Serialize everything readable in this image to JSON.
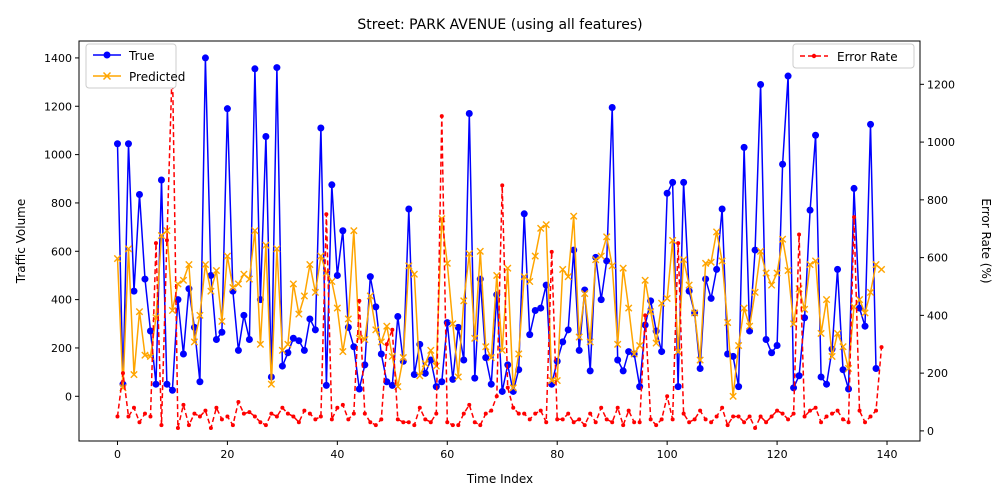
{
  "chart_data": {
    "type": "line",
    "title": "Street: PARK AVENUE (using all features)",
    "xlabel": "Time Index",
    "ylabel": "Traffic Volume",
    "y2label": "Error Rate (%)",
    "xlim": [
      -7,
      146
    ],
    "ylim": [
      -185,
      1470
    ],
    "y2lim": [
      -35,
      1350
    ],
    "x_ticks": [
      "0",
      "20",
      "40",
      "60",
      "80",
      "100",
      "120",
      "140"
    ],
    "y_ticks": [
      "0",
      "200",
      "400",
      "600",
      "800",
      "1000",
      "1200",
      "1400"
    ],
    "y2_ticks": [
      "0",
      "200",
      "400",
      "600",
      "800",
      "1000",
      "1200"
    ],
    "x_tick_values": [
      0,
      20,
      40,
      60,
      80,
      100,
      120,
      140
    ],
    "y_tick_values": [
      0,
      200,
      400,
      600,
      800,
      1000,
      1200,
      1400
    ],
    "y2_tick_values": [
      0,
      200,
      400,
      600,
      800,
      1000,
      1200
    ],
    "grid": false,
    "legend_left": {
      "placement": "top-left"
    },
    "legend_right": {
      "placement": "top-right"
    },
    "series": [
      {
        "name": "True",
        "color": "#0000ff",
        "marker": "circle",
        "axis": "left",
        "values": [
          1045,
          50,
          1045,
          435,
          835,
          485,
          270,
          50,
          895,
          50,
          25,
          400,
          175,
          445,
          285,
          60,
          1400,
          500,
          235,
          265,
          1190,
          435,
          190,
          335,
          235,
          1355,
          400,
          1075,
          80,
          1360,
          125,
          180,
          240,
          230,
          190,
          320,
          275,
          1110,
          45,
          875,
          500,
          685,
          285,
          205,
          30,
          130,
          495,
          370,
          175,
          60,
          45,
          330,
          145,
          775,
          90,
          215,
          95,
          150,
          40,
          60,
          305,
          70,
          285,
          150,
          1170,
          75,
          485,
          160,
          50,
          420,
          20,
          130,
          20,
          110,
          755,
          255,
          355,
          365,
          460,
          50,
          145,
          225,
          275,
          605,
          190,
          440,
          105,
          575,
          400,
          560,
          1195,
          150,
          105,
          185,
          175,
          40,
          295,
          395,
          270,
          185,
          840,
          885,
          40,
          885,
          435,
          345,
          115,
          485,
          405,
          525,
          775,
          175,
          165,
          40,
          1030,
          270,
          605,
          1290,
          235,
          180,
          210,
          960,
          1325,
          35,
          85,
          325,
          770,
          1080,
          80,
          50,
          195,
          525,
          110,
          30,
          860,
          365,
          290,
          1125,
          115
        ]
      },
      {
        "name": "Predicted",
        "color": "#ffa500",
        "marker": "x",
        "axis": "left",
        "values": [
          570,
          35,
          610,
          90,
          350,
          170,
          165,
          325,
          665,
          685,
          355,
          465,
          480,
          545,
          225,
          335,
          545,
          435,
          520,
          310,
          580,
          450,
          465,
          505,
          485,
          685,
          215,
          625,
          50,
          610,
          190,
          215,
          465,
          340,
          415,
          545,
          430,
          580,
          510,
          475,
          365,
          185,
          320,
          685,
          240,
          235,
          415,
          275,
          225,
          290,
          165,
          40,
          160,
          540,
          505,
          85,
          135,
          190,
          125,
          735,
          550,
          300,
          80,
          395,
          590,
          240,
          600,
          205,
          160,
          500,
          190,
          530,
          35,
          175,
          495,
          475,
          580,
          695,
          710,
          65,
          65,
          525,
          495,
          745,
          245,
          425,
          225,
          565,
          580,
          660,
          540,
          215,
          530,
          365,
          175,
          210,
          480,
          350,
          220,
          385,
          405,
          645,
          185,
          565,
          460,
          345,
          150,
          550,
          555,
          680,
          560,
          305,
          0,
          210,
          365,
          290,
          430,
          600,
          510,
          460,
          510,
          650,
          520,
          300,
          445,
          360,
          545,
          560,
          260,
          400,
          165,
          260,
          205,
          115,
          370,
          400,
          345,
          430,
          545,
          525
        ]
      },
      {
        "name": "Error Rate",
        "color": "#ff0000",
        "marker": "dot",
        "dash": true,
        "axis": "right",
        "values": [
          50,
          200,
          50,
          80,
          30,
          60,
          50,
          650,
          20,
          660,
          1280,
          10,
          90,
          20,
          60,
          50,
          70,
          10,
          80,
          40,
          50,
          20,
          100,
          60,
          65,
          50,
          30,
          20,
          60,
          50,
          80,
          60,
          50,
          30,
          70,
          60,
          40,
          50,
          750,
          40,
          80,
          90,
          40,
          60,
          450,
          60,
          30,
          20,
          40,
          300,
          350,
          40,
          30,
          30,
          20,
          80,
          40,
          30,
          60,
          1090,
          30,
          20,
          20,
          60,
          90,
          30,
          20,
          60,
          70,
          120,
          850,
          150,
          80,
          60,
          60,
          40,
          60,
          70,
          30,
          620,
          40,
          40,
          60,
          30,
          40,
          20,
          60,
          30,
          80,
          40,
          30,
          80,
          20,
          70,
          30,
          30,
          400,
          40,
          20,
          40,
          120,
          40,
          650,
          60,
          30,
          40,
          70,
          40,
          30,
          50,
          80,
          20,
          50,
          50,
          30,
          50,
          10,
          50,
          30,
          50,
          70,
          60,
          40,
          60,
          680,
          50,
          70,
          80,
          30,
          50,
          60,
          70,
          40,
          30,
          740,
          70,
          30,
          50,
          70,
          290
        ]
      }
    ]
  }
}
